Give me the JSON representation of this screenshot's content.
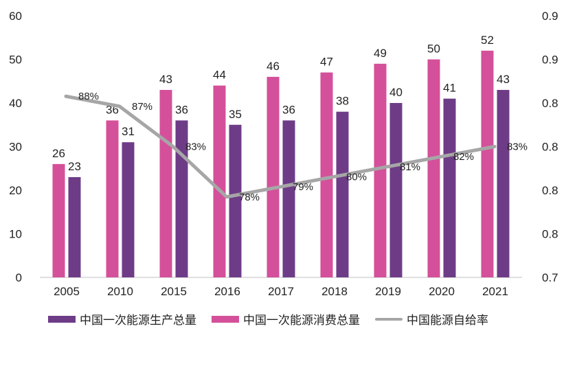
{
  "chart_data": {
    "type": "bar",
    "categories": [
      "2005",
      "2010",
      "2015",
      "2016",
      "2017",
      "2018",
      "2019",
      "2020",
      "2021"
    ],
    "series": [
      {
        "name": "中国一次能源消费总量",
        "kind": "bar",
        "axis": "left",
        "color": "#d4509a",
        "values": [
          26,
          36,
          43,
          44,
          46,
          47,
          49,
          50,
          52
        ],
        "labels": [
          "26",
          "36",
          "43",
          "44",
          "46",
          "47",
          "49",
          "50",
          "52"
        ]
      },
      {
        "name": "中国一次能源生产总量",
        "kind": "bar",
        "axis": "left",
        "color": "#6e3c87",
        "values": [
          23,
          31,
          36,
          35,
          36,
          38,
          40,
          41,
          43
        ],
        "labels": [
          "23",
          "31",
          "36",
          "35",
          "36",
          "38",
          "40",
          "41",
          "43"
        ]
      },
      {
        "name": "中国能源自给率",
        "kind": "line",
        "axis": "right",
        "color": "#a6a6a6",
        "values": [
          0.88,
          0.87,
          0.83,
          0.78,
          0.79,
          0.8,
          0.81,
          0.82,
          0.83
        ],
        "labels": [
          "88%",
          "87%",
          "83%",
          "78%",
          "79%",
          "80%",
          "81%",
          "82%",
          "83%"
        ]
      }
    ],
    "left_axis": {
      "ylim": [
        0,
        60
      ],
      "ticks": [
        "0",
        "10",
        "20",
        "30",
        "40",
        "50",
        "60"
      ]
    },
    "right_axis": {
      "ylim": [
        0.7,
        0.96
      ],
      "ticks": [
        "0.7",
        "0.8",
        "0.8",
        "0.8",
        "0.8",
        "0.9",
        "0.9"
      ]
    },
    "legend": {
      "position": "bottom",
      "items": [
        {
          "label": "中国一次能源生产总量",
          "color": "#6e3c87",
          "kind": "bar"
        },
        {
          "label": "中国一次能源消费总量",
          "color": "#d4509a",
          "kind": "bar"
        },
        {
          "label": "中国能源自给率",
          "color": "#a6a6a6",
          "kind": "line"
        }
      ]
    },
    "title": "",
    "xlabel": "",
    "ylabel": ""
  }
}
